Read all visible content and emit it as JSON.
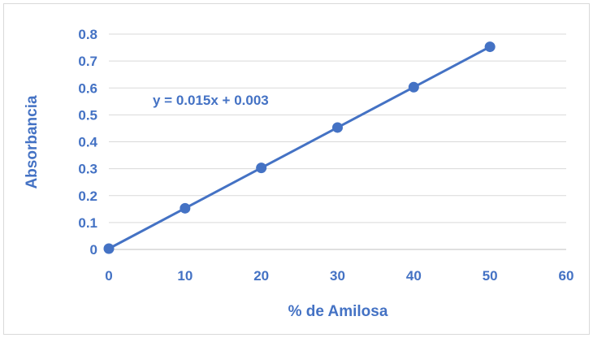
{
  "chart_data": {
    "type": "scatter",
    "title": "",
    "xlabel": "% de Amilosa",
    "ylabel": "Absorbancia",
    "xlim": [
      0,
      60
    ],
    "ylim": [
      0,
      0.8
    ],
    "x_ticks": [
      "0",
      "10",
      "20",
      "30",
      "40",
      "50",
      "60"
    ],
    "y_ticks": [
      "0",
      "0.1",
      "0.2",
      "0.3",
      "0.4",
      "0.5",
      "0.6",
      "0.7",
      "0.8"
    ],
    "grid": "horizontal",
    "legend": "none",
    "series": [
      {
        "x": [
          0,
          10,
          20,
          30,
          40,
          50
        ],
        "y": [
          0.003,
          0.153,
          0.303,
          0.453,
          0.603,
          0.753
        ],
        "color": "#4472c4",
        "marker": "circle",
        "connect": true
      }
    ],
    "trendline": {
      "slope": 0.015,
      "intercept": 0.003,
      "equation": "y = 0.015x + 0.003"
    }
  }
}
